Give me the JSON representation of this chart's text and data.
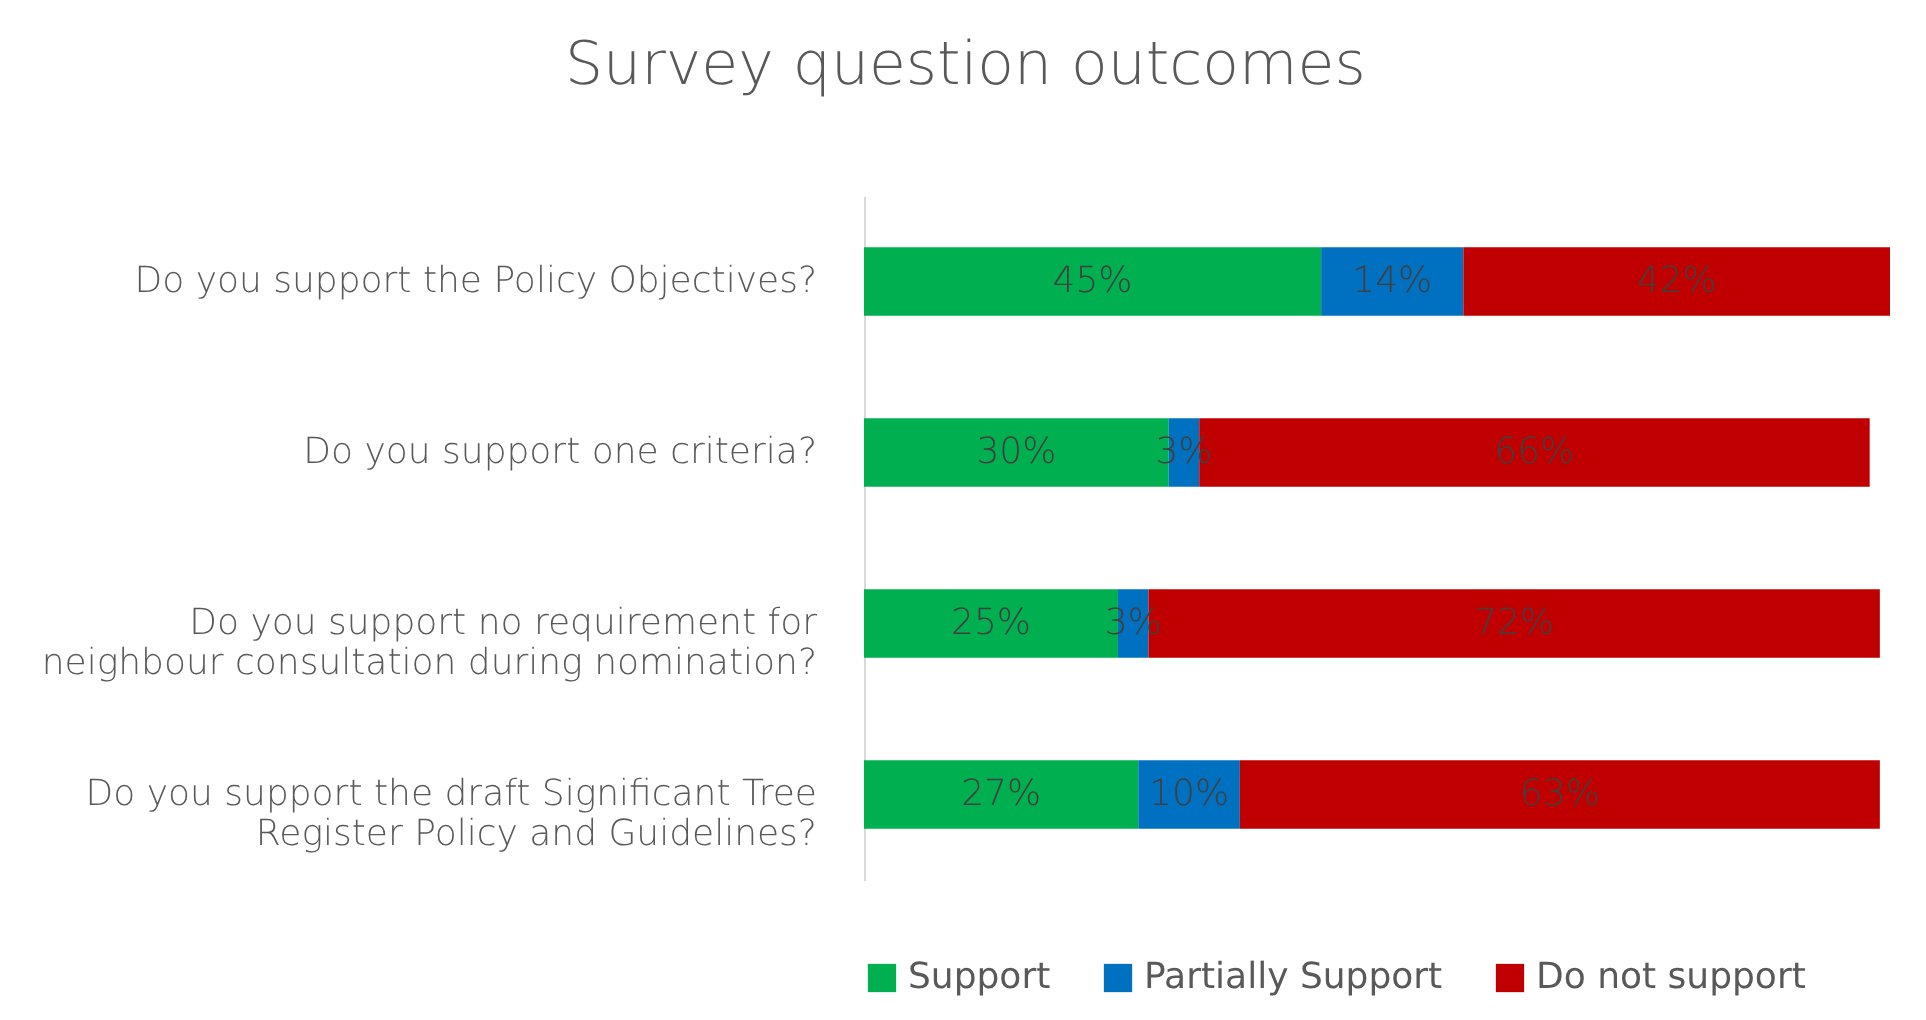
{
  "chart_data": {
    "type": "bar",
    "title": "Survey question outcomes",
    "orientation": "horizontal",
    "stacked": true,
    "legend": "bottom",
    "categories": [
      "Do you support the Policy Objectives?",
      "Do you support one criteria?",
      "Do you support no requirement for neighbour consultation during nomination?",
      "Do you support the draft Significant Tree Register Policy and Guidelines?"
    ],
    "series": [
      {
        "name": "Support",
        "color": "#00b050",
        "values": [
          45,
          30,
          25,
          27
        ],
        "value_labels": [
          "45%",
          "30%",
          "25%",
          "27%"
        ]
      },
      {
        "name": "Partially Support",
        "color": "#0070c0",
        "values": [
          14,
          3,
          3,
          10
        ],
        "value_labels": [
          "14%",
          "3%",
          "3%",
          "10%"
        ]
      },
      {
        "name": "Do not support",
        "color": "#c00000",
        "values": [
          42,
          66,
          72,
          63
        ],
        "value_labels": [
          "42%",
          "66%",
          "72%",
          "63%"
        ]
      }
    ]
  }
}
